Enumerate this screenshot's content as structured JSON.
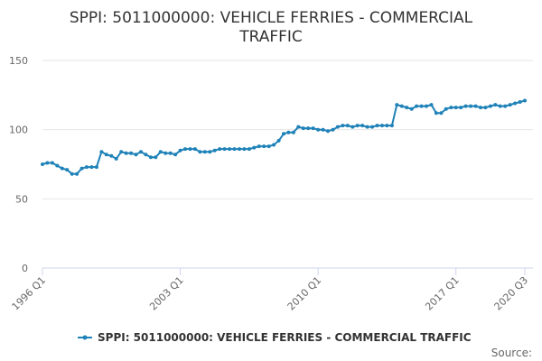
{
  "chart_data": {
    "type": "line",
    "title_lines": [
      "SPPI: 5011000000: VEHICLE FERRIES - COMMERCIAL",
      "TRAFFIC"
    ],
    "x_tick_labels": [
      "1996 Q1",
      "2003 Q1",
      "2010 Q1",
      "2017 Q1",
      "2020 Q3"
    ],
    "y_ticks": [
      0,
      50,
      100,
      150
    ],
    "ylim": [
      0,
      150
    ],
    "grid": true,
    "legend_position": "bottom",
    "source_label": "Source:",
    "colors": {
      "series": "#1f82b8",
      "grid": "#e6e6e6",
      "axis": "#ccd6eb"
    },
    "series": [
      {
        "name": "SPPI: 5011000000: VEHICLE FERRIES - COMMERCIAL TRAFFIC",
        "x": [
          "1996 Q1",
          "1996 Q2",
          "1996 Q3",
          "1996 Q4",
          "1997 Q1",
          "1997 Q2",
          "1997 Q3",
          "1997 Q4",
          "1998 Q1",
          "1998 Q2",
          "1998 Q3",
          "1998 Q4",
          "1999 Q1",
          "1999 Q2",
          "1999 Q3",
          "1999 Q4",
          "2000 Q1",
          "2000 Q2",
          "2000 Q3",
          "2000 Q4",
          "2001 Q1",
          "2001 Q2",
          "2001 Q3",
          "2001 Q4",
          "2002 Q1",
          "2002 Q2",
          "2002 Q3",
          "2002 Q4",
          "2003 Q1",
          "2003 Q2",
          "2003 Q3",
          "2003 Q4",
          "2004 Q1",
          "2004 Q2",
          "2004 Q3",
          "2004 Q4",
          "2005 Q1",
          "2005 Q2",
          "2005 Q3",
          "2005 Q4",
          "2006 Q1",
          "2006 Q2",
          "2006 Q3",
          "2006 Q4",
          "2007 Q1",
          "2007 Q2",
          "2007 Q3",
          "2007 Q4",
          "2008 Q1",
          "2008 Q2",
          "2008 Q3",
          "2008 Q4",
          "2009 Q1",
          "2009 Q2",
          "2009 Q3",
          "2009 Q4",
          "2010 Q1",
          "2010 Q2",
          "2010 Q3",
          "2010 Q4",
          "2011 Q1",
          "2011 Q2",
          "2011 Q3",
          "2011 Q4",
          "2012 Q1",
          "2012 Q2",
          "2012 Q3",
          "2012 Q4",
          "2013 Q1",
          "2013 Q2",
          "2013 Q3",
          "2013 Q4",
          "2014 Q1",
          "2014 Q2",
          "2014 Q3",
          "2014 Q4",
          "2015 Q1",
          "2015 Q2",
          "2015 Q3",
          "2015 Q4",
          "2016 Q1",
          "2016 Q2",
          "2016 Q3",
          "2016 Q4",
          "2017 Q1",
          "2017 Q2",
          "2017 Q3",
          "2017 Q4",
          "2018 Q1",
          "2018 Q2",
          "2018 Q3",
          "2018 Q4",
          "2019 Q1",
          "2019 Q2",
          "2019 Q3",
          "2019 Q4",
          "2020 Q1",
          "2020 Q2",
          "2020 Q3"
        ],
        "values": [
          75,
          76,
          76,
          74,
          72,
          71,
          68,
          68,
          72,
          73,
          73,
          73,
          84,
          82,
          81,
          79,
          84,
          83,
          83,
          82,
          84,
          82,
          80,
          80,
          84,
          83,
          83,
          82,
          85,
          86,
          86,
          86,
          84,
          84,
          84,
          85,
          86,
          86,
          86,
          86,
          86,
          86,
          86,
          87,
          88,
          88,
          88,
          89,
          92,
          97,
          98,
          98,
          102,
          101,
          101,
          101,
          100,
          100,
          99,
          100,
          102,
          103,
          103,
          102,
          103,
          103,
          102,
          102,
          103,
          103,
          103,
          103,
          118,
          117,
          116,
          115,
          117,
          117,
          117,
          118,
          112,
          112,
          115,
          116,
          116,
          116,
          117,
          117,
          117,
          116,
          116,
          117,
          118,
          117,
          117,
          118,
          119,
          120,
          121
        ]
      }
    ]
  }
}
